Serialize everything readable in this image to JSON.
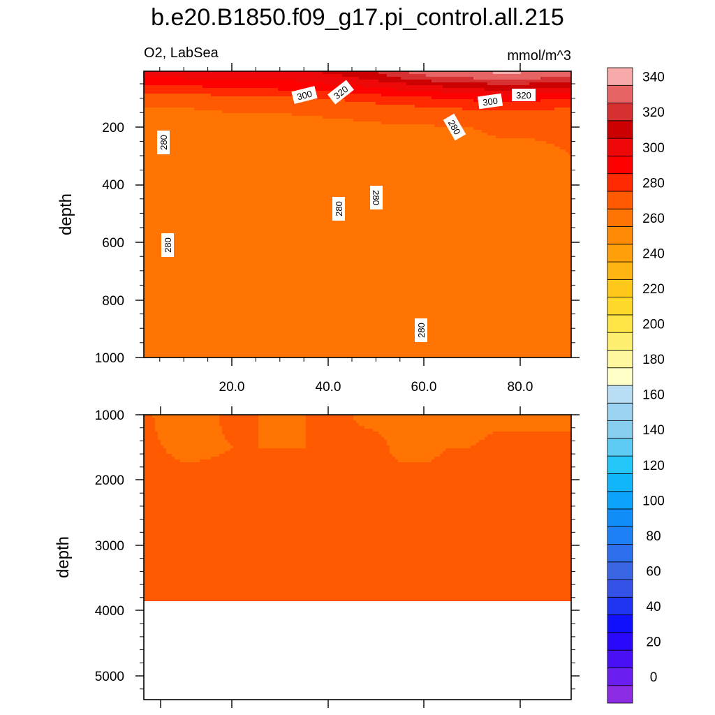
{
  "title": "b.e20.B1850.f09_g17.pi_control.all.215",
  "left_string": "O2, LabSea",
  "units": "mmol/m^3",
  "chart_data": [
    {
      "type": "heatmap",
      "panel": "upper",
      "xlabel": "",
      "ylabel": "depth",
      "xlim": [
        1,
        91
      ],
      "ylim": [
        1000,
        5
      ],
      "y_reversed": true,
      "xticks": [
        "20.0",
        "40.0",
        "60.0",
        "80.0"
      ],
      "yticks": [
        "200",
        "400",
        "600",
        "800",
        "1000"
      ],
      "contour_labels": [
        "300",
        "320",
        "300",
        "320",
        "280",
        "280",
        "280",
        "280",
        "280",
        "280"
      ],
      "x": [
        1,
        5,
        10,
        20,
        30,
        40,
        50,
        55,
        60,
        65,
        70,
        75,
        80,
        85,
        91
      ],
      "y": [
        5,
        25,
        50,
        75,
        100,
        150,
        200,
        300,
        400,
        600,
        800,
        1000
      ],
      "z": [
        [
          318,
          318,
          318,
          318,
          318,
          322,
          330,
          340,
          345,
          348,
          350,
          352,
          352,
          350,
          350
        ],
        [
          310,
          310,
          312,
          312,
          312,
          316,
          325,
          332,
          338,
          340,
          342,
          345,
          345,
          342,
          340
        ],
        [
          302,
          302,
          302,
          304,
          306,
          310,
          315,
          318,
          322,
          325,
          328,
          330,
          330,
          328,
          325
        ],
        [
          294,
          294,
          294,
          296,
          298,
          300,
          305,
          308,
          310,
          312,
          315,
          318,
          318,
          316,
          315
        ],
        [
          284,
          284,
          284,
          286,
          288,
          290,
          294,
          296,
          298,
          300,
          302,
          304,
          304,
          302,
          300
        ],
        [
          278,
          278,
          278,
          280,
          280,
          281,
          282,
          283,
          284,
          285,
          286,
          287,
          287,
          286,
          285
        ],
        [
          276,
          276,
          276,
          278,
          278,
          278,
          279,
          279,
          279,
          280,
          280,
          281,
          281,
          281,
          281
        ],
        [
          275,
          275,
          275,
          277,
          277,
          276,
          276,
          276,
          276,
          276,
          277,
          278,
          278,
          279,
          280
        ],
        [
          275,
          275,
          275,
          276,
          276,
          276,
          275,
          275,
          275,
          275,
          275,
          276,
          276,
          277,
          279
        ],
        [
          275,
          275,
          275,
          276,
          276,
          276,
          275,
          275,
          275,
          275,
          275,
          275,
          275,
          276,
          278
        ],
        [
          275,
          275,
          275,
          276,
          276,
          276,
          275,
          275,
          275,
          275,
          275,
          275,
          275,
          275,
          277
        ],
        [
          275,
          275,
          275,
          276,
          276,
          276,
          275,
          275,
          275,
          275,
          275,
          275,
          275,
          275,
          277
        ]
      ]
    },
    {
      "type": "heatmap",
      "panel": "lower",
      "xlabel": "",
      "ylabel": "depth",
      "xlim": [
        1,
        91
      ],
      "ylim": [
        5400,
        1000
      ],
      "y_reversed": true,
      "max_depth_with_data": 3870,
      "xticks": [],
      "yticks": [
        "1000",
        "2000",
        "3000",
        "4000",
        "5000"
      ],
      "x": [
        1,
        5,
        10,
        20,
        30,
        40,
        50,
        55,
        60,
        65,
        70,
        75,
        80,
        85,
        91
      ],
      "y": [
        1000,
        1500,
        2000,
        2500,
        3000,
        3500,
        3870
      ],
      "z": [
        [
          281,
          279,
          278,
          281,
          279,
          281,
          279,
          279,
          279,
          279,
          278,
          279,
          279,
          279,
          279
        ],
        [
          281,
          280,
          279,
          280,
          280,
          280,
          281,
          279,
          279,
          280,
          280,
          281,
          281,
          281,
          281
        ],
        [
          281,
          281,
          281,
          281,
          281,
          281,
          281,
          281,
          281,
          281,
          281,
          281,
          281,
          281,
          281
        ],
        [
          281,
          281,
          281,
          281,
          281,
          281,
          281,
          281,
          281,
          281,
          281,
          282,
          283,
          284,
          284
        ],
        [
          281,
          281,
          281,
          281,
          281,
          281,
          281,
          282,
          284,
          286,
          287,
          287,
          287,
          287,
          287
        ],
        [
          281,
          281,
          281,
          281,
          281,
          281,
          282,
          286,
          287,
          287,
          287,
          287,
          287,
          287,
          287
        ],
        [
          281,
          281,
          281,
          281,
          281,
          281,
          282,
          286,
          287,
          287,
          287,
          287,
          287,
          287,
          287
        ]
      ]
    }
  ],
  "colorbar": {
    "levels": [
      0,
      10,
      20,
      30,
      40,
      50,
      60,
      70,
      80,
      90,
      100,
      110,
      120,
      130,
      140,
      150,
      160,
      170,
      180,
      190,
      200,
      210,
      220,
      230,
      240,
      250,
      260,
      270,
      280,
      290,
      300,
      310,
      320,
      330,
      340,
      350
    ],
    "tick_labels": [
      "0",
      "20",
      "40",
      "60",
      "80",
      "100",
      "120",
      "140",
      "160",
      "180",
      "200",
      "220",
      "240",
      "260",
      "280",
      "300",
      "320",
      "340"
    ],
    "colors": [
      "#8b2be2",
      "#6a1ff0",
      "#4a10f5",
      "#2a08fa",
      "#1010ff",
      "#1f34f0",
      "#3552e8",
      "#3a66e4",
      "#2d6fec",
      "#1e80f5",
      "#118df8",
      "#0ba3fb",
      "#12b6fa",
      "#25c6f8",
      "#5ecbf4",
      "#86cdf0",
      "#9dd3f2",
      "#b9def5",
      "#ffffc8",
      "#fff8a0",
      "#ffef70",
      "#ffe545",
      "#ffd92a",
      "#ffc81a",
      "#ffb511",
      "#ffa00b",
      "#ff8a06",
      "#ff7403",
      "#ff5a02",
      "#ff2a00",
      "#ff0000",
      "#ee0808",
      "#cc0000",
      "#d63030",
      "#e66464",
      "#f7aaaa"
    ]
  }
}
